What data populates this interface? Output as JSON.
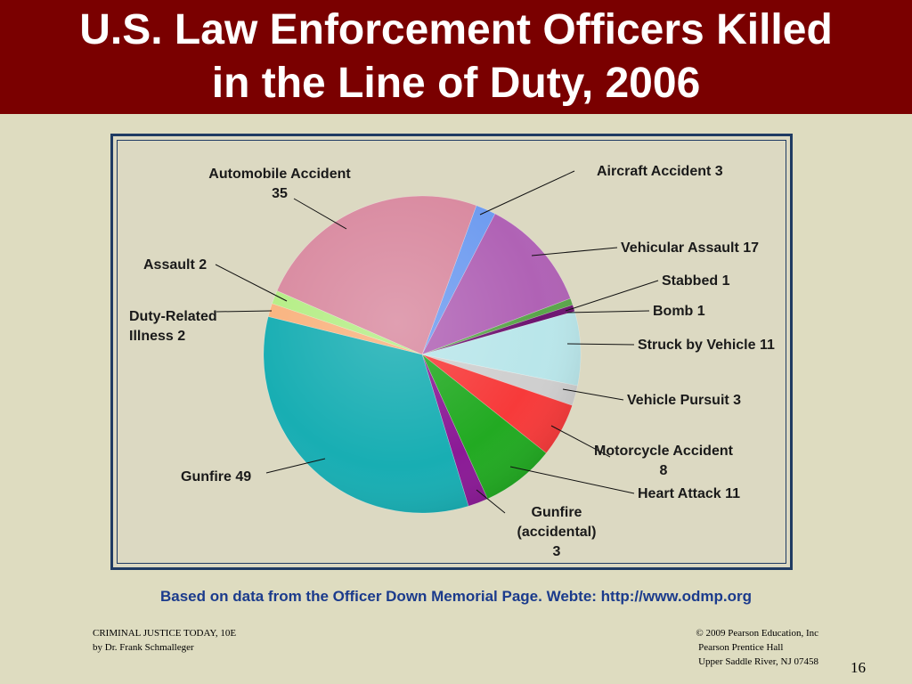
{
  "slide": {
    "title_line1": "U.S. Law Enforcement Officers Killed",
    "title_line2": "in the Line of Duty, 2006",
    "source_text": "Based on data from the Officer Down Memorial Page.  Webte: http://www.odmp.org",
    "footer_left": [
      "CRIMINAL JUSTICE TODAY, 10E",
      "by Dr. Frank Schmalleger"
    ],
    "footer_right": [
      "© 2009 Pearson Education, Inc",
      "Pearson Prentice Hall",
      "Upper Saddle River, NJ 07458"
    ],
    "page_number": "16"
  },
  "chart_data": {
    "type": "pie",
    "slices": [
      {
        "label": [
          "Aircraft Accident 3"
        ],
        "value": 3,
        "color": "#6f9cf0"
      },
      {
        "label": [
          "Vehicular Assault 17"
        ],
        "value": 17,
        "color": "#b062b5"
      },
      {
        "label": [
          "Stabbed 1"
        ],
        "value": 1,
        "color": "#5aa64a"
      },
      {
        "label": [
          "Bomb 1"
        ],
        "value": 1,
        "color": "#6d1470"
      },
      {
        "label": [
          "Struck by Vehicle 11"
        ],
        "value": 11,
        "color": "#b9e6ea"
      },
      {
        "label": [
          "Vehicle Pursuit 3"
        ],
        "value": 3,
        "color": "#cfcfcf"
      },
      {
        "label": [
          "Motorcycle Accident",
          "8"
        ],
        "value": 8,
        "color": "#f73a3a"
      },
      {
        "label": [
          "Heart Attack 11"
        ],
        "value": 11,
        "color": "#22aa22"
      },
      {
        "label": [
          "Gunfire",
          "(accidental)",
          "3"
        ],
        "value": 3,
        "color": "#8b1a96"
      },
      {
        "label": [
          "Gunfire 49"
        ],
        "value": 49,
        "color": "#18aeb3"
      },
      {
        "label": [
          "Duty-Related",
          "Illness 2"
        ],
        "value": 2,
        "color": "#f9b37f"
      },
      {
        "label": [
          "Assault 2"
        ],
        "value": 2,
        "color": "#b5ee86"
      },
      {
        "label": [
          "Automobile Accident",
          "35"
        ],
        "value": 35,
        "color": "#d98aa0"
      }
    ]
  }
}
